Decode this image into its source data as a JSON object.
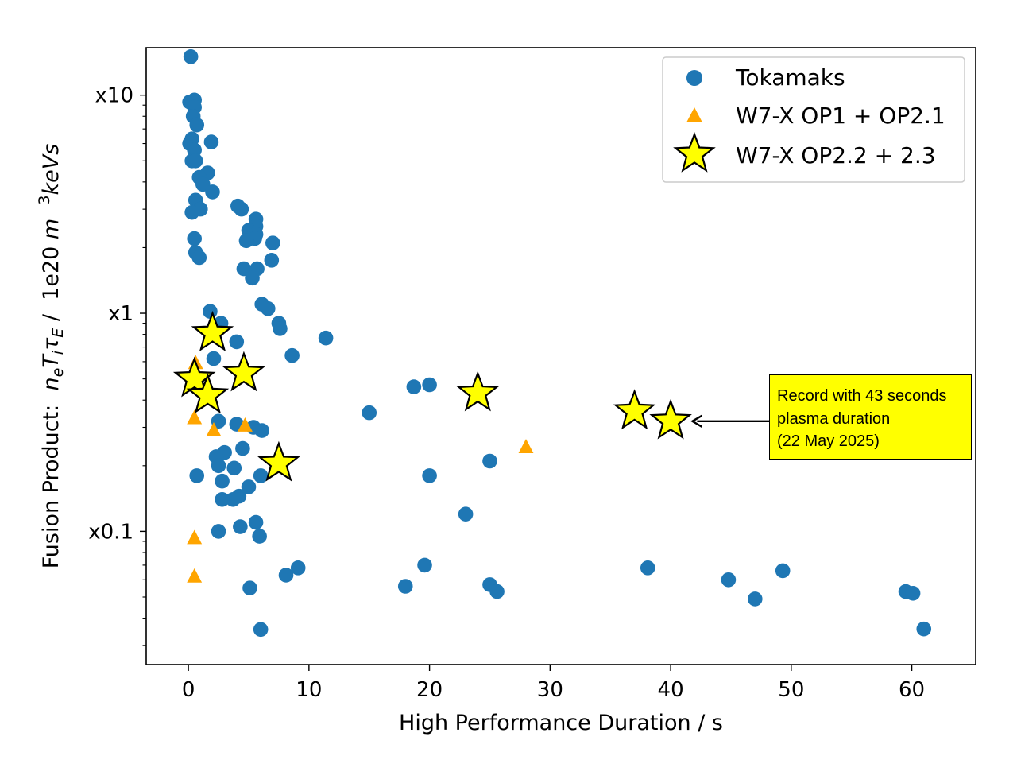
{
  "chart_data": {
    "type": "scatter",
    "xlabel": "High Performance Duration / s",
    "ylabel_parts": [
      "Fusion Product:  ",
      "n",
      "e",
      "T",
      "i",
      "τ",
      "E",
      " /  1e20 ",
      "m",
      "  ",
      "3",
      "keVs"
    ],
    "x_ticks": [
      0,
      10,
      20,
      30,
      40,
      50,
      60
    ],
    "y_ticks": [
      {
        "value": 10,
        "label": "x10"
      },
      {
        "value": 1,
        "label": "x1"
      },
      {
        "value": 0.1,
        "label": "x0.1"
      }
    ],
    "y_scale": "log",
    "xlim": [
      -3.5,
      65.3
    ],
    "ylim": [
      0.0245,
      16.5
    ],
    "grid": false,
    "legend_position": "top-right",
    "series": [
      {
        "name": "Tokamaks",
        "marker": "circle",
        "color": "#1f77b4",
        "points": [
          [
            0.2,
            15.0
          ],
          [
            0.1,
            9.3
          ],
          [
            0.5,
            9.5
          ],
          [
            0.5,
            8.8
          ],
          [
            0.4,
            8.0
          ],
          [
            0.7,
            7.3
          ],
          [
            0.3,
            6.3
          ],
          [
            0.1,
            6.0
          ],
          [
            0.5,
            5.6
          ],
          [
            1.9,
            6.1
          ],
          [
            0.3,
            5.0
          ],
          [
            0.6,
            5.0
          ],
          [
            1.6,
            4.4
          ],
          [
            0.9,
            4.2
          ],
          [
            1.2,
            3.9
          ],
          [
            2.0,
            3.6
          ],
          [
            0.6,
            3.3
          ],
          [
            1.0,
            3.0
          ],
          [
            0.3,
            2.9
          ],
          [
            4.1,
            3.1
          ],
          [
            4.4,
            3.0
          ],
          [
            5.6,
            2.7
          ],
          [
            5.6,
            2.5
          ],
          [
            5.0,
            2.4
          ],
          [
            5.6,
            2.3
          ],
          [
            5.1,
            2.2
          ],
          [
            5.5,
            2.2
          ],
          [
            4.8,
            2.15
          ],
          [
            0.5,
            2.2
          ],
          [
            7.0,
            2.1
          ],
          [
            0.6,
            1.9
          ],
          [
            0.9,
            1.8
          ],
          [
            6.9,
            1.75
          ],
          [
            4.6,
            1.6
          ],
          [
            5.7,
            1.6
          ],
          [
            5.3,
            1.45
          ],
          [
            6.1,
            1.1
          ],
          [
            6.6,
            1.05
          ],
          [
            1.8,
            1.02
          ],
          [
            7.5,
            0.9
          ],
          [
            2.7,
            0.9
          ],
          [
            7.6,
            0.85
          ],
          [
            11.4,
            0.77
          ],
          [
            4.0,
            0.74
          ],
          [
            8.6,
            0.64
          ],
          [
            2.1,
            0.62
          ],
          [
            18.7,
            0.46
          ],
          [
            20.0,
            0.47
          ],
          [
            15.0,
            0.35
          ],
          [
            4.0,
            0.31
          ],
          [
            5.4,
            0.3
          ],
          [
            6.1,
            0.29
          ],
          [
            2.5,
            0.32
          ],
          [
            4.5,
            0.24
          ],
          [
            3.0,
            0.23
          ],
          [
            2.3,
            0.22
          ],
          [
            25.0,
            0.21
          ],
          [
            2.5,
            0.2
          ],
          [
            3.8,
            0.195
          ],
          [
            20.0,
            0.18
          ],
          [
            0.7,
            0.18
          ],
          [
            6.0,
            0.18
          ],
          [
            2.8,
            0.17
          ],
          [
            5.0,
            0.16
          ],
          [
            4.2,
            0.145
          ],
          [
            3.7,
            0.14
          ],
          [
            2.8,
            0.14
          ],
          [
            23.0,
            0.12
          ],
          [
            5.6,
            0.11
          ],
          [
            4.3,
            0.105
          ],
          [
            2.5,
            0.1
          ],
          [
            5.9,
            0.095
          ],
          [
            9.1,
            0.068
          ],
          [
            38.1,
            0.068
          ],
          [
            49.3,
            0.066
          ],
          [
            19.6,
            0.07
          ],
          [
            8.1,
            0.063
          ],
          [
            44.8,
            0.06
          ],
          [
            25.0,
            0.057
          ],
          [
            25.6,
            0.053
          ],
          [
            18.0,
            0.056
          ],
          [
            5.1,
            0.055
          ],
          [
            59.5,
            0.053
          ],
          [
            60.1,
            0.052
          ],
          [
            47.0,
            0.049
          ],
          [
            6.0,
            0.0355
          ],
          [
            61.0,
            0.0357
          ]
        ]
      },
      {
        "name": "W7-X OP1 + OP2.1",
        "marker": "triangle",
        "color": "#ffa500",
        "points": [
          [
            0.6,
            0.59
          ],
          [
            0.5,
            0.33
          ],
          [
            2.1,
            0.29
          ],
          [
            4.7,
            0.305
          ],
          [
            28.0,
            0.243
          ],
          [
            0.5,
            0.093
          ],
          [
            0.5,
            0.062
          ]
        ]
      },
      {
        "name": "W7-X OP2.2 + 2.3",
        "marker": "star",
        "color": "#ffff00",
        "points": [
          [
            2.0,
            0.81
          ],
          [
            4.6,
            0.53
          ],
          [
            0.5,
            0.5
          ],
          [
            1.6,
            0.42
          ],
          [
            24.0,
            0.43
          ],
          [
            37.0,
            0.355
          ],
          [
            40.0,
            0.32
          ],
          [
            7.5,
            0.205
          ]
        ]
      }
    ],
    "annotation": {
      "lines": [
        "Record with 43 seconds",
        "plasma duration",
        "(22 May 2025)"
      ],
      "target": [
        41.8,
        0.32
      ],
      "background": "#ffff00"
    }
  }
}
